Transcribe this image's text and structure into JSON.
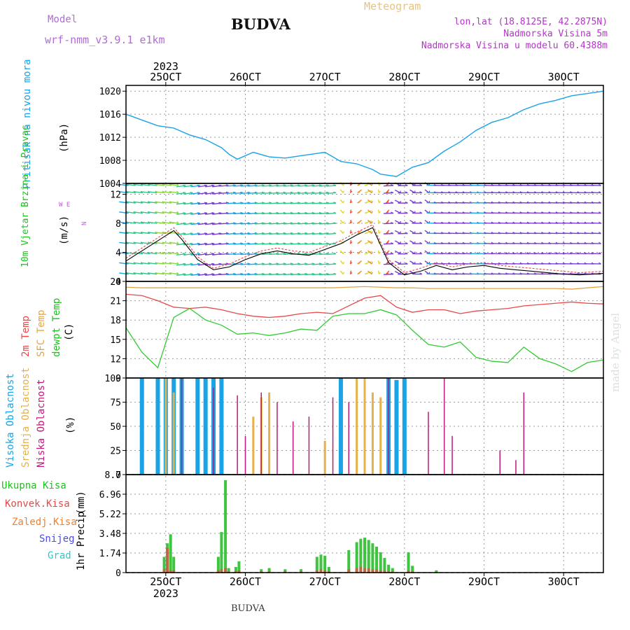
{
  "header": {
    "title": "BUDVA",
    "meteogram": "Meteogram",
    "model_label": "Model",
    "model_name": "wrf-nmm_v3.9.1 e1km",
    "lonlat": "lon,lat (18.8125E, 42.2875N)",
    "altitude": "Nadmorska Visina 5m",
    "model_altitude": "Nadmorska Visina u modelu 60.4388m",
    "footer": "BUDVA",
    "made_by": "made by Angel"
  },
  "colors": {
    "pressure": "#1aa3e6",
    "temp2m": "#e84848",
    "sfc_temp": "#e3a445",
    "dewpoint": "#2fcc2f",
    "high_cloud": "#1aa3e6",
    "mid_cloud": "#e6b04a",
    "low_cloud": "#c0187a",
    "precip_total": "#3ec43e",
    "precip_conv": "#e84848",
    "precip_frz": "#f07f2f",
    "precip_snow": "#4c4ce0",
    "precip_grad": "#2fc7c7",
    "wind_gust": "#e84848",
    "wind_speed": "#000000"
  },
  "axis": {
    "year": "2023",
    "days": [
      "25OCT",
      "26OCT",
      "27OCT",
      "28OCT",
      "29OCT",
      "30OCT"
    ]
  },
  "chart_data": [
    {
      "type": "line",
      "panel": "pressure",
      "ylabel": "Pritisak na nivou mora",
      "unit": "(hPa)",
      "ylim": [
        1004,
        1021
      ],
      "yticks": [
        "1020",
        "1016",
        "1012",
        "1008",
        "1004"
      ],
      "x": [
        24.5,
        24.7,
        24.9,
        25.1,
        25.3,
        25.5,
        25.7,
        25.8,
        25.9,
        26.1,
        26.3,
        26.5,
        26.7,
        26.9,
        27.0,
        27.2,
        27.4,
        27.6,
        27.7,
        27.9,
        28.1,
        28.3,
        28.5,
        28.7,
        28.9,
        29.1,
        29.3,
        29.5,
        29.7,
        29.9,
        30.1,
        30.3,
        30.5
      ],
      "series": [
        {
          "values": [
            1016,
            1015,
            1014,
            1013.6,
            1012.4,
            1011.6,
            1010.2,
            1009,
            1008.2,
            1009.4,
            1008.6,
            1008.4,
            1008.8,
            1009.2,
            1009.4,
            1007.8,
            1007.4,
            1006.4,
            1005.6,
            1005.2,
            1006.8,
            1007.6,
            1009.6,
            1011.2,
            1013.2,
            1014.6,
            1015.4,
            1016.8,
            1017.8,
            1018.4,
            1019.2,
            1019.6,
            1020
          ]
        }
      ]
    },
    {
      "type": "line",
      "panel": "wind",
      "ylabel": "10m Vjetar Brzina i Pravac",
      "unit": "(m/s)",
      "compass": "N",
      "compass_ew": "W E",
      "ylim": [
        0,
        13.5
      ],
      "yticks": [
        "12",
        "8",
        "4",
        "0"
      ],
      "x": [
        24.5,
        24.7,
        24.9,
        25.1,
        25.2,
        25.4,
        25.6,
        25.8,
        26.0,
        26.2,
        26.4,
        26.6,
        26.8,
        27.0,
        27.2,
        27.4,
        27.6,
        27.8,
        28.0,
        28.2,
        28.4,
        28.6,
        28.8,
        29.0,
        29.2,
        29.4,
        29.6,
        29.8,
        30.0,
        30.2,
        30.5
      ],
      "series": [
        {
          "values": [
            3.2,
            4.6,
            6.0,
            7.4,
            6.2,
            3.4,
            1.8,
            2.4,
            3.4,
            4.2,
            4.6,
            4.2,
            4.0,
            4.8,
            5.6,
            6.8,
            7.8,
            3.0,
            1.2,
            1.8,
            2.6,
            2.0,
            2.4,
            2.6,
            2.2,
            2.0,
            1.8,
            1.6,
            1.4,
            1.2,
            1.4
          ]
        },
        {
          "values": [
            2.8,
            4.2,
            5.6,
            7.0,
            5.8,
            3.0,
            1.6,
            2.0,
            3.0,
            3.8,
            4.2,
            3.8,
            3.6,
            4.4,
            5.2,
            6.4,
            7.4,
            2.6,
            0.9,
            1.4,
            2.2,
            1.6,
            2.0,
            2.2,
            1.8,
            1.6,
            1.4,
            1.2,
            1.0,
            0.9,
            1.1
          ]
        }
      ]
    },
    {
      "type": "line",
      "panel": "temperature",
      "ylabel": "2m Temp | SFC Temp | dewpt Temp",
      "ylabel_2m": "2m Temp",
      "ylabel_sfc": "SFC Temp",
      "ylabel_dew": "dewpt Temp",
      "unit": "(C)",
      "ylim": [
        9,
        24
      ],
      "yticks": [
        "24",
        "21",
        "18",
        "15",
        "12",
        "9"
      ],
      "x": [
        24.5,
        24.7,
        24.9,
        25.1,
        25.3,
        25.5,
        25.7,
        25.9,
        26.1,
        26.3,
        26.5,
        26.7,
        26.9,
        27.1,
        27.3,
        27.5,
        27.7,
        27.9,
        28.1,
        28.3,
        28.5,
        28.7,
        28.9,
        29.1,
        29.3,
        29.5,
        29.7,
        29.9,
        30.1,
        30.3,
        30.5
      ],
      "series": [
        {
          "values": [
            22,
            21.8,
            21,
            20,
            19.8,
            20,
            19.6,
            19,
            18.6,
            18.4,
            18.6,
            19,
            19.2,
            19,
            20.2,
            21.4,
            21.8,
            20,
            19.2,
            19.6,
            19.6,
            19,
            19.4,
            19.6,
            19.8,
            20.2,
            20.4,
            20.6,
            20.8,
            20.6,
            20.5
          ]
        },
        {
          "values": [
            23.1,
            23,
            23,
            23,
            23,
            23,
            23,
            23,
            23,
            23,
            23,
            23,
            23,
            23,
            23.1,
            23.2,
            23.1,
            23,
            23,
            22.9,
            22.9,
            22.9,
            22.9,
            22.9,
            22.9,
            22.9,
            22.9,
            22.9,
            22.8,
            23,
            23.2
          ]
        },
        {
          "values": [
            16.8,
            13,
            10.6,
            18.4,
            19.8,
            18,
            17.2,
            15.8,
            16,
            15.6,
            16,
            16.6,
            16.4,
            18.6,
            19,
            19,
            19.6,
            18.8,
            16.4,
            14.2,
            13.8,
            14.6,
            12.2,
            11.6,
            11.4,
            13.8,
            12,
            11.2,
            10,
            11.4,
            11.8
          ]
        }
      ]
    },
    {
      "type": "bar",
      "panel": "cloud",
      "ylabel": "Visoka Oblacnost | Srednja Oblacnost | Niska Oblacnost",
      "ylabel_high": "Visoka Oblacnost",
      "ylabel_mid": "Srednja Oblacnost",
      "ylabel_low": "Niska Oblacnost",
      "unit": "(%)",
      "ylim": [
        0,
        100
      ],
      "yticks": [
        "100",
        "75",
        "50",
        "25",
        "0"
      ],
      "series": [
        {
          "name": "Visoka Oblacnost",
          "x": [
            24.7,
            24.9,
            25.0,
            25.1,
            25.2,
            25.4,
            25.5,
            25.6,
            25.7,
            27.2,
            27.8,
            27.9,
            28.0
          ],
          "values": [
            100,
            100,
            100,
            100,
            100,
            100,
            100,
            100,
            100,
            100,
            100,
            98,
            100
          ]
        },
        {
          "name": "Srednja Oblacnost",
          "x": [
            25.0,
            25.1,
            26.1,
            26.2,
            26.3,
            27.0,
            27.4,
            27.5,
            27.6,
            27.7
          ],
          "values": [
            100,
            85,
            60,
            80,
            85,
            35,
            100,
            100,
            85,
            80
          ]
        },
        {
          "name": "Niska Oblacnost",
          "x": [
            25.2,
            25.6,
            25.9,
            26.0,
            26.2,
            26.4,
            26.6,
            26.8,
            27.1,
            27.3,
            27.8,
            28.3,
            28.5,
            28.6,
            29.2,
            29.4,
            29.5
          ],
          "values": [
            100,
            90,
            82,
            40,
            85,
            75,
            55,
            60,
            80,
            75,
            100,
            65,
            100,
            40,
            25,
            15,
            85
          ]
        }
      ]
    },
    {
      "type": "bar",
      "panel": "precip",
      "ylabel": "1hr Precip",
      "unit": "(mm)",
      "legend": [
        "Ukupna Kisa",
        "Konvek.Kisa",
        "Zaledj.Kisa",
        "Snijeg",
        "Grad"
      ],
      "ylim": [
        0,
        8.7
      ],
      "yticks": [
        "8.7",
        "6.96",
        "5.22",
        "3.48",
        "1.74",
        "0"
      ],
      "x": [
        24.98,
        25.02,
        25.06,
        25.1,
        25.66,
        25.7,
        25.75,
        25.79,
        25.88,
        25.92,
        26.2,
        26.3,
        26.5,
        26.7,
        26.9,
        26.95,
        27.0,
        27.05,
        27.3,
        27.4,
        27.45,
        27.5,
        27.55,
        27.6,
        27.65,
        27.7,
        27.75,
        27.8,
        27.85,
        28.05,
        28.1,
        28.4
      ],
      "series": [
        {
          "name": "Ukupna Kisa",
          "values": [
            1.4,
            2.6,
            3.4,
            1.4,
            1.4,
            3.6,
            8.2,
            0.4,
            0.5,
            1.0,
            0.3,
            0.4,
            0.3,
            0.3,
            1.4,
            1.6,
            1.5,
            0.5,
            2.0,
            2.7,
            3.0,
            3.1,
            2.9,
            2.6,
            2.3,
            1.8,
            1.3,
            0.7,
            0.4,
            1.8,
            0.6,
            0.2
          ]
        },
        {
          "name": "Konvek.Kisa",
          "values": [
            0.3,
            2.2,
            0.2,
            0.2,
            0.2,
            0.3,
            0.4,
            0.1,
            0.1,
            0.2,
            0.1,
            0.1,
            0.1,
            0.1,
            0.2,
            0.3,
            0.2,
            0.1,
            0.3,
            0.4,
            0.5,
            0.4,
            0.4,
            0.3,
            0.3,
            0.2,
            0.2,
            0.1,
            0.1,
            0.2,
            0.1,
            0.0
          ]
        }
      ]
    }
  ]
}
